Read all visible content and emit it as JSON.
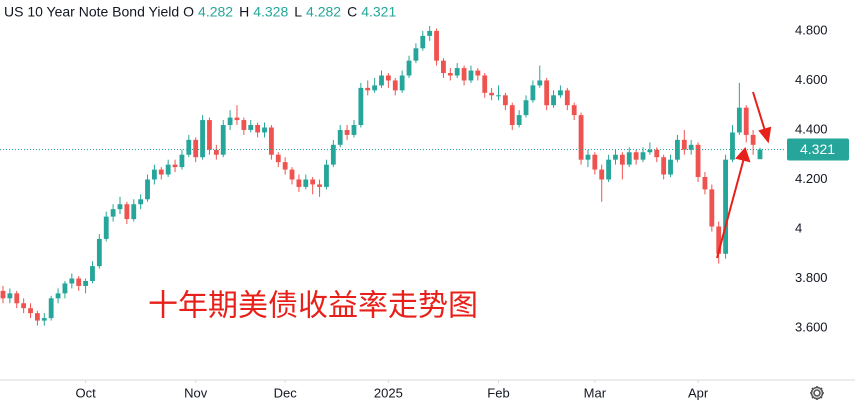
{
  "chart_data": {
    "type": "candlestick",
    "title": "US 10 Year Note Bond Yield",
    "ohlc_labels": [
      "O",
      "H",
      "L",
      "C"
    ],
    "annotation": "十年期美债收益率走势图",
    "up_color": "#26a69a",
    "down_color": "#ef5350",
    "ylim": [
      3.39,
      4.925
    ],
    "yticks": [
      {
        "value": 3.6,
        "label": "3.600"
      },
      {
        "value": 3.8,
        "label": "3.800"
      },
      4,
      {
        "value": 4.2,
        "label": "4.200"
      },
      {
        "value": 4.4,
        "label": "4.400"
      },
      {
        "value": 4.6,
        "label": "4.600"
      },
      {
        "value": 4.8,
        "label": "4.800"
      }
    ],
    "xticks": [
      {
        "value": 12,
        "label": "Oct"
      },
      {
        "value": 28,
        "label": "Nov"
      },
      {
        "value": 41,
        "label": "Dec"
      },
      {
        "value": 56,
        "label": "2025"
      },
      {
        "value": 72,
        "label": "Feb"
      },
      {
        "value": 86,
        "label": "Mar"
      },
      {
        "value": 101,
        "label": "Apr"
      }
    ],
    "grid": false,
    "candles": [
      [
        3.75,
        3.77,
        3.7,
        3.72
      ],
      [
        3.72,
        3.76,
        3.7,
        3.74
      ],
      [
        3.74,
        3.75,
        3.68,
        3.7
      ],
      [
        3.7,
        3.72,
        3.66,
        3.68
      ],
      [
        3.68,
        3.7,
        3.64,
        3.66
      ],
      [
        3.66,
        3.67,
        3.61,
        3.63
      ],
      [
        3.63,
        3.66,
        3.61,
        3.64
      ],
      [
        3.64,
        3.73,
        3.63,
        3.72
      ],
      [
        3.72,
        3.76,
        3.7,
        3.74
      ],
      [
        3.74,
        3.79,
        3.72,
        3.78
      ],
      [
        3.78,
        3.82,
        3.76,
        3.8
      ],
      [
        3.8,
        3.81,
        3.75,
        3.77
      ],
      [
        3.77,
        3.8,
        3.74,
        3.79
      ],
      [
        3.79,
        3.87,
        3.78,
        3.85
      ],
      [
        3.85,
        3.98,
        3.84,
        3.96
      ],
      [
        3.96,
        4.07,
        3.95,
        4.05
      ],
      [
        4.05,
        4.1,
        4.03,
        4.08
      ],
      [
        4.08,
        4.13,
        4.06,
        4.1
      ],
      [
        4.1,
        4.11,
        4.02,
        4.04
      ],
      [
        4.04,
        4.12,
        4.03,
        4.1
      ],
      [
        4.1,
        4.14,
        4.08,
        4.12
      ],
      [
        4.12,
        4.22,
        4.11,
        4.2
      ],
      [
        4.2,
        4.26,
        4.18,
        4.24
      ],
      [
        4.24,
        4.25,
        4.2,
        4.22
      ],
      [
        4.22,
        4.28,
        4.21,
        4.26
      ],
      [
        4.26,
        4.28,
        4.23,
        4.25
      ],
      [
        4.25,
        4.32,
        4.24,
        4.3
      ],
      [
        4.3,
        4.38,
        4.29,
        4.36
      ],
      [
        4.36,
        4.37,
        4.27,
        4.29
      ],
      [
        4.29,
        4.46,
        4.28,
        4.44
      ],
      [
        4.44,
        4.45,
        4.3,
        4.32
      ],
      [
        4.32,
        4.34,
        4.28,
        4.3
      ],
      [
        4.3,
        4.44,
        4.29,
        4.42
      ],
      [
        4.42,
        4.48,
        4.4,
        4.45
      ],
      [
        4.45,
        4.5,
        4.42,
        4.44
      ],
      [
        4.44,
        4.45,
        4.38,
        4.4
      ],
      [
        4.4,
        4.44,
        4.39,
        4.42
      ],
      [
        4.42,
        4.43,
        4.37,
        4.39
      ],
      [
        4.39,
        4.43,
        4.37,
        4.41
      ],
      [
        4.41,
        4.42,
        4.28,
        4.3
      ],
      [
        4.3,
        4.31,
        4.25,
        4.27
      ],
      [
        4.27,
        4.29,
        4.22,
        4.24
      ],
      [
        4.24,
        4.25,
        4.18,
        4.2
      ],
      [
        4.2,
        4.22,
        4.15,
        4.17
      ],
      [
        4.17,
        4.22,
        4.16,
        4.2
      ],
      [
        4.2,
        4.21,
        4.14,
        4.18
      ],
      [
        4.18,
        4.2,
        4.13,
        4.17
      ],
      [
        4.17,
        4.28,
        4.16,
        4.26
      ],
      [
        4.26,
        4.36,
        4.25,
        4.34
      ],
      [
        4.34,
        4.42,
        4.33,
        4.4
      ],
      [
        4.4,
        4.42,
        4.36,
        4.38
      ],
      [
        4.38,
        4.44,
        4.37,
        4.42
      ],
      [
        4.42,
        4.59,
        4.41,
        4.57
      ],
      [
        4.57,
        4.6,
        4.54,
        4.56
      ],
      [
        4.56,
        4.61,
        4.55,
        4.58
      ],
      [
        4.58,
        4.64,
        4.57,
        4.62
      ],
      [
        4.62,
        4.63,
        4.57,
        4.6
      ],
      [
        4.6,
        4.61,
        4.54,
        4.56
      ],
      [
        4.56,
        4.64,
        4.55,
        4.62
      ],
      [
        4.62,
        4.7,
        4.61,
        4.68
      ],
      [
        4.68,
        4.75,
        4.67,
        4.73
      ],
      [
        4.73,
        4.8,
        4.72,
        4.78
      ],
      [
        4.78,
        4.82,
        4.76,
        4.8
      ],
      [
        4.8,
        4.81,
        4.66,
        4.68
      ],
      [
        4.68,
        4.69,
        4.61,
        4.63
      ],
      [
        4.63,
        4.65,
        4.6,
        4.62
      ],
      [
        4.62,
        4.67,
        4.61,
        4.65
      ],
      [
        4.65,
        4.66,
        4.58,
        4.6
      ],
      [
        4.6,
        4.66,
        4.59,
        4.64
      ],
      [
        4.64,
        4.65,
        4.6,
        4.62
      ],
      [
        4.62,
        4.63,
        4.53,
        4.55
      ],
      [
        4.55,
        4.57,
        4.52,
        4.54
      ],
      [
        4.54,
        4.58,
        4.52,
        4.54
      ],
      [
        4.54,
        4.55,
        4.48,
        4.5
      ],
      [
        4.5,
        4.51,
        4.4,
        4.42
      ],
      [
        4.42,
        4.48,
        4.41,
        4.46
      ],
      [
        4.46,
        4.54,
        4.45,
        4.52
      ],
      [
        4.52,
        4.6,
        4.51,
        4.58
      ],
      [
        4.58,
        4.66,
        4.57,
        4.6
      ],
      [
        4.6,
        4.61,
        4.48,
        4.5
      ],
      [
        4.5,
        4.56,
        4.49,
        4.54
      ],
      [
        4.54,
        4.58,
        4.53,
        4.56
      ],
      [
        4.56,
        4.57,
        4.48,
        4.5
      ],
      [
        4.5,
        4.51,
        4.44,
        4.46
      ],
      [
        4.46,
        4.47,
        4.26,
        4.28
      ],
      [
        4.28,
        4.32,
        4.25,
        4.3
      ],
      [
        4.3,
        4.31,
        4.22,
        4.24
      ],
      [
        4.24,
        4.26,
        4.11,
        4.2
      ],
      [
        4.2,
        4.3,
        4.19,
        4.28
      ],
      [
        4.28,
        4.32,
        4.26,
        4.3
      ],
      [
        4.3,
        4.31,
        4.2,
        4.26
      ],
      [
        4.26,
        4.33,
        4.25,
        4.31
      ],
      [
        4.31,
        4.32,
        4.26,
        4.28
      ],
      [
        4.28,
        4.33,
        4.27,
        4.31
      ],
      [
        4.31,
        4.35,
        4.3,
        4.32
      ],
      [
        4.32,
        4.33,
        4.27,
        4.29
      ],
      [
        4.29,
        4.3,
        4.2,
        4.22
      ],
      [
        4.22,
        4.3,
        4.21,
        4.28
      ],
      [
        4.28,
        4.38,
        4.27,
        4.36
      ],
      [
        4.36,
        4.4,
        4.3,
        4.32
      ],
      [
        4.32,
        4.36,
        4.3,
        4.34
      ],
      [
        4.34,
        4.35,
        4.19,
        4.21
      ],
      [
        4.21,
        4.23,
        4.14,
        4.16
      ],
      [
        4.16,
        4.18,
        3.99,
        4.01
      ],
      [
        4.01,
        4.03,
        3.86,
        3.9
      ],
      [
        3.9,
        4.3,
        3.88,
        4.28
      ],
      [
        4.28,
        4.42,
        4.27,
        4.39
      ],
      [
        4.39,
        4.59,
        4.38,
        4.49
      ],
      [
        4.49,
        4.5,
        4.35,
        4.38
      ],
      [
        4.38,
        4.4,
        4.3,
        4.34
      ],
      [
        4.282,
        4.328,
        4.282,
        4.321
      ]
    ]
  }
}
